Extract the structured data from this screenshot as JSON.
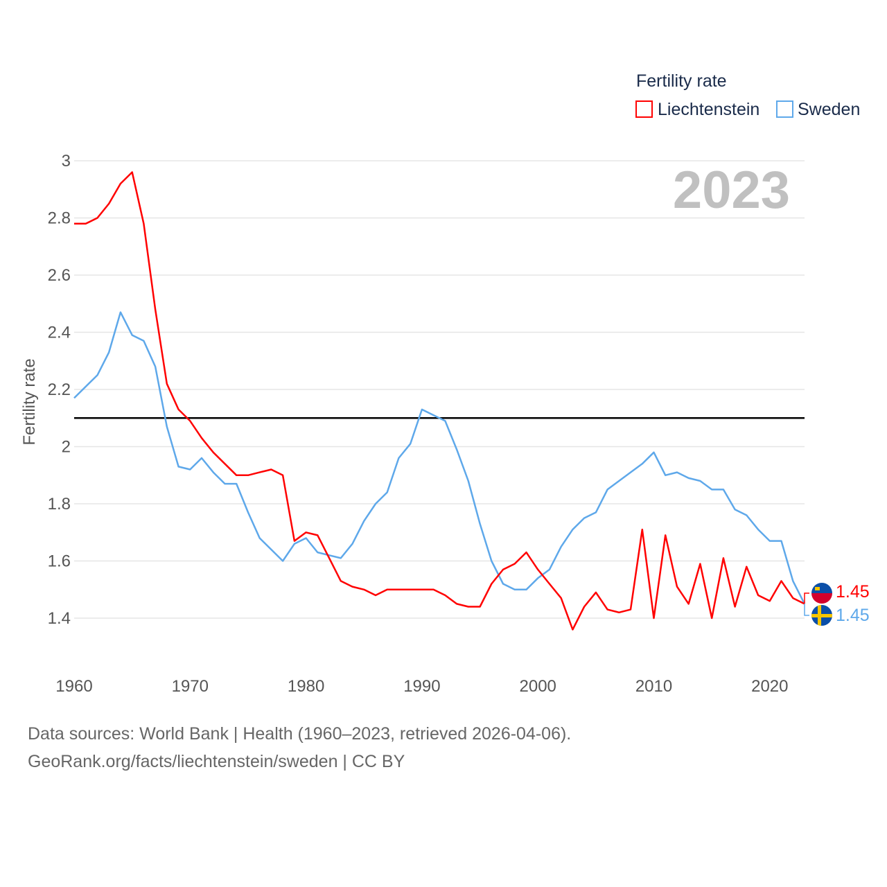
{
  "chart_data": {
    "type": "line",
    "title": "",
    "xlabel": "",
    "ylabel": "Fertility rate",
    "xlim": [
      1960,
      2023
    ],
    "ylim": [
      1.3,
      3.0
    ],
    "yticks": [
      1.4,
      1.6,
      1.8,
      2,
      2.2,
      2.4,
      2.6,
      2.8,
      3
    ],
    "ytick_labels": [
      "1.4",
      "1.6",
      "1.8",
      "2",
      "2.2",
      "2.4",
      "2.6",
      "2.8",
      "3"
    ],
    "xticks": [
      1960,
      1970,
      1980,
      1990,
      2000,
      2010,
      2020
    ],
    "xtick_labels": [
      "1960",
      "1970",
      "1980",
      "1990",
      "2000",
      "2010",
      "2020"
    ],
    "grid": true,
    "reference_line": 2.1,
    "year_label": "2023",
    "legend": {
      "title": "Fertility rate",
      "position": "top-right"
    },
    "x": [
      1960,
      1961,
      1962,
      1963,
      1964,
      1965,
      1966,
      1967,
      1968,
      1969,
      1970,
      1971,
      1972,
      1973,
      1974,
      1975,
      1976,
      1977,
      1978,
      1979,
      1980,
      1981,
      1982,
      1983,
      1984,
      1985,
      1986,
      1987,
      1988,
      1989,
      1990,
      1991,
      1992,
      1993,
      1994,
      1995,
      1996,
      1997,
      1998,
      1999,
      2000,
      2001,
      2002,
      2003,
      2004,
      2005,
      2006,
      2007,
      2008,
      2009,
      2010,
      2011,
      2012,
      2013,
      2014,
      2015,
      2016,
      2017,
      2018,
      2019,
      2020,
      2021,
      2022,
      2023
    ],
    "series": [
      {
        "name": "Liechtenstein",
        "color": "#ff0000",
        "end_label": "1.45",
        "values": [
          2.78,
          2.78,
          2.8,
          2.85,
          2.92,
          2.96,
          2.78,
          2.48,
          2.22,
          2.13,
          2.09,
          2.03,
          1.98,
          1.94,
          1.9,
          1.9,
          1.91,
          1.92,
          1.9,
          1.67,
          1.7,
          1.69,
          1.61,
          1.53,
          1.51,
          1.5,
          1.48,
          1.5,
          1.5,
          1.5,
          1.5,
          1.5,
          1.48,
          1.45,
          1.44,
          1.44,
          1.52,
          1.57,
          1.59,
          1.63,
          1.57,
          1.52,
          1.47,
          1.36,
          1.44,
          1.49,
          1.43,
          1.42,
          1.43,
          1.71,
          1.4,
          1.69,
          1.51,
          1.45,
          1.59,
          1.4,
          1.61,
          1.44,
          1.58,
          1.48,
          1.46,
          1.53,
          1.47,
          1.45
        ]
      },
      {
        "name": "Sweden",
        "color": "#5ea8ea",
        "end_label": "1.45",
        "values": [
          2.17,
          2.21,
          2.25,
          2.33,
          2.47,
          2.39,
          2.37,
          2.28,
          2.07,
          1.93,
          1.92,
          1.96,
          1.91,
          1.87,
          1.87,
          1.77,
          1.68,
          1.64,
          1.6,
          1.66,
          1.68,
          1.63,
          1.62,
          1.61,
          1.66,
          1.74,
          1.8,
          1.84,
          1.96,
          2.01,
          2.13,
          2.11,
          2.09,
          1.99,
          1.88,
          1.73,
          1.6,
          1.52,
          1.5,
          1.5,
          1.54,
          1.57,
          1.65,
          1.71,
          1.75,
          1.77,
          1.85,
          1.88,
          1.91,
          1.94,
          1.98,
          1.9,
          1.91,
          1.89,
          1.88,
          1.85,
          1.85,
          1.78,
          1.76,
          1.71,
          1.67,
          1.67,
          1.53,
          1.45
        ]
      }
    ]
  },
  "footer": {
    "line1": "Data sources: World Bank | Health (1960–2023, retrieved 2026-04-06).",
    "line2": "GeoRank.org/facts/liechtenstein/sweden | CC BY"
  }
}
